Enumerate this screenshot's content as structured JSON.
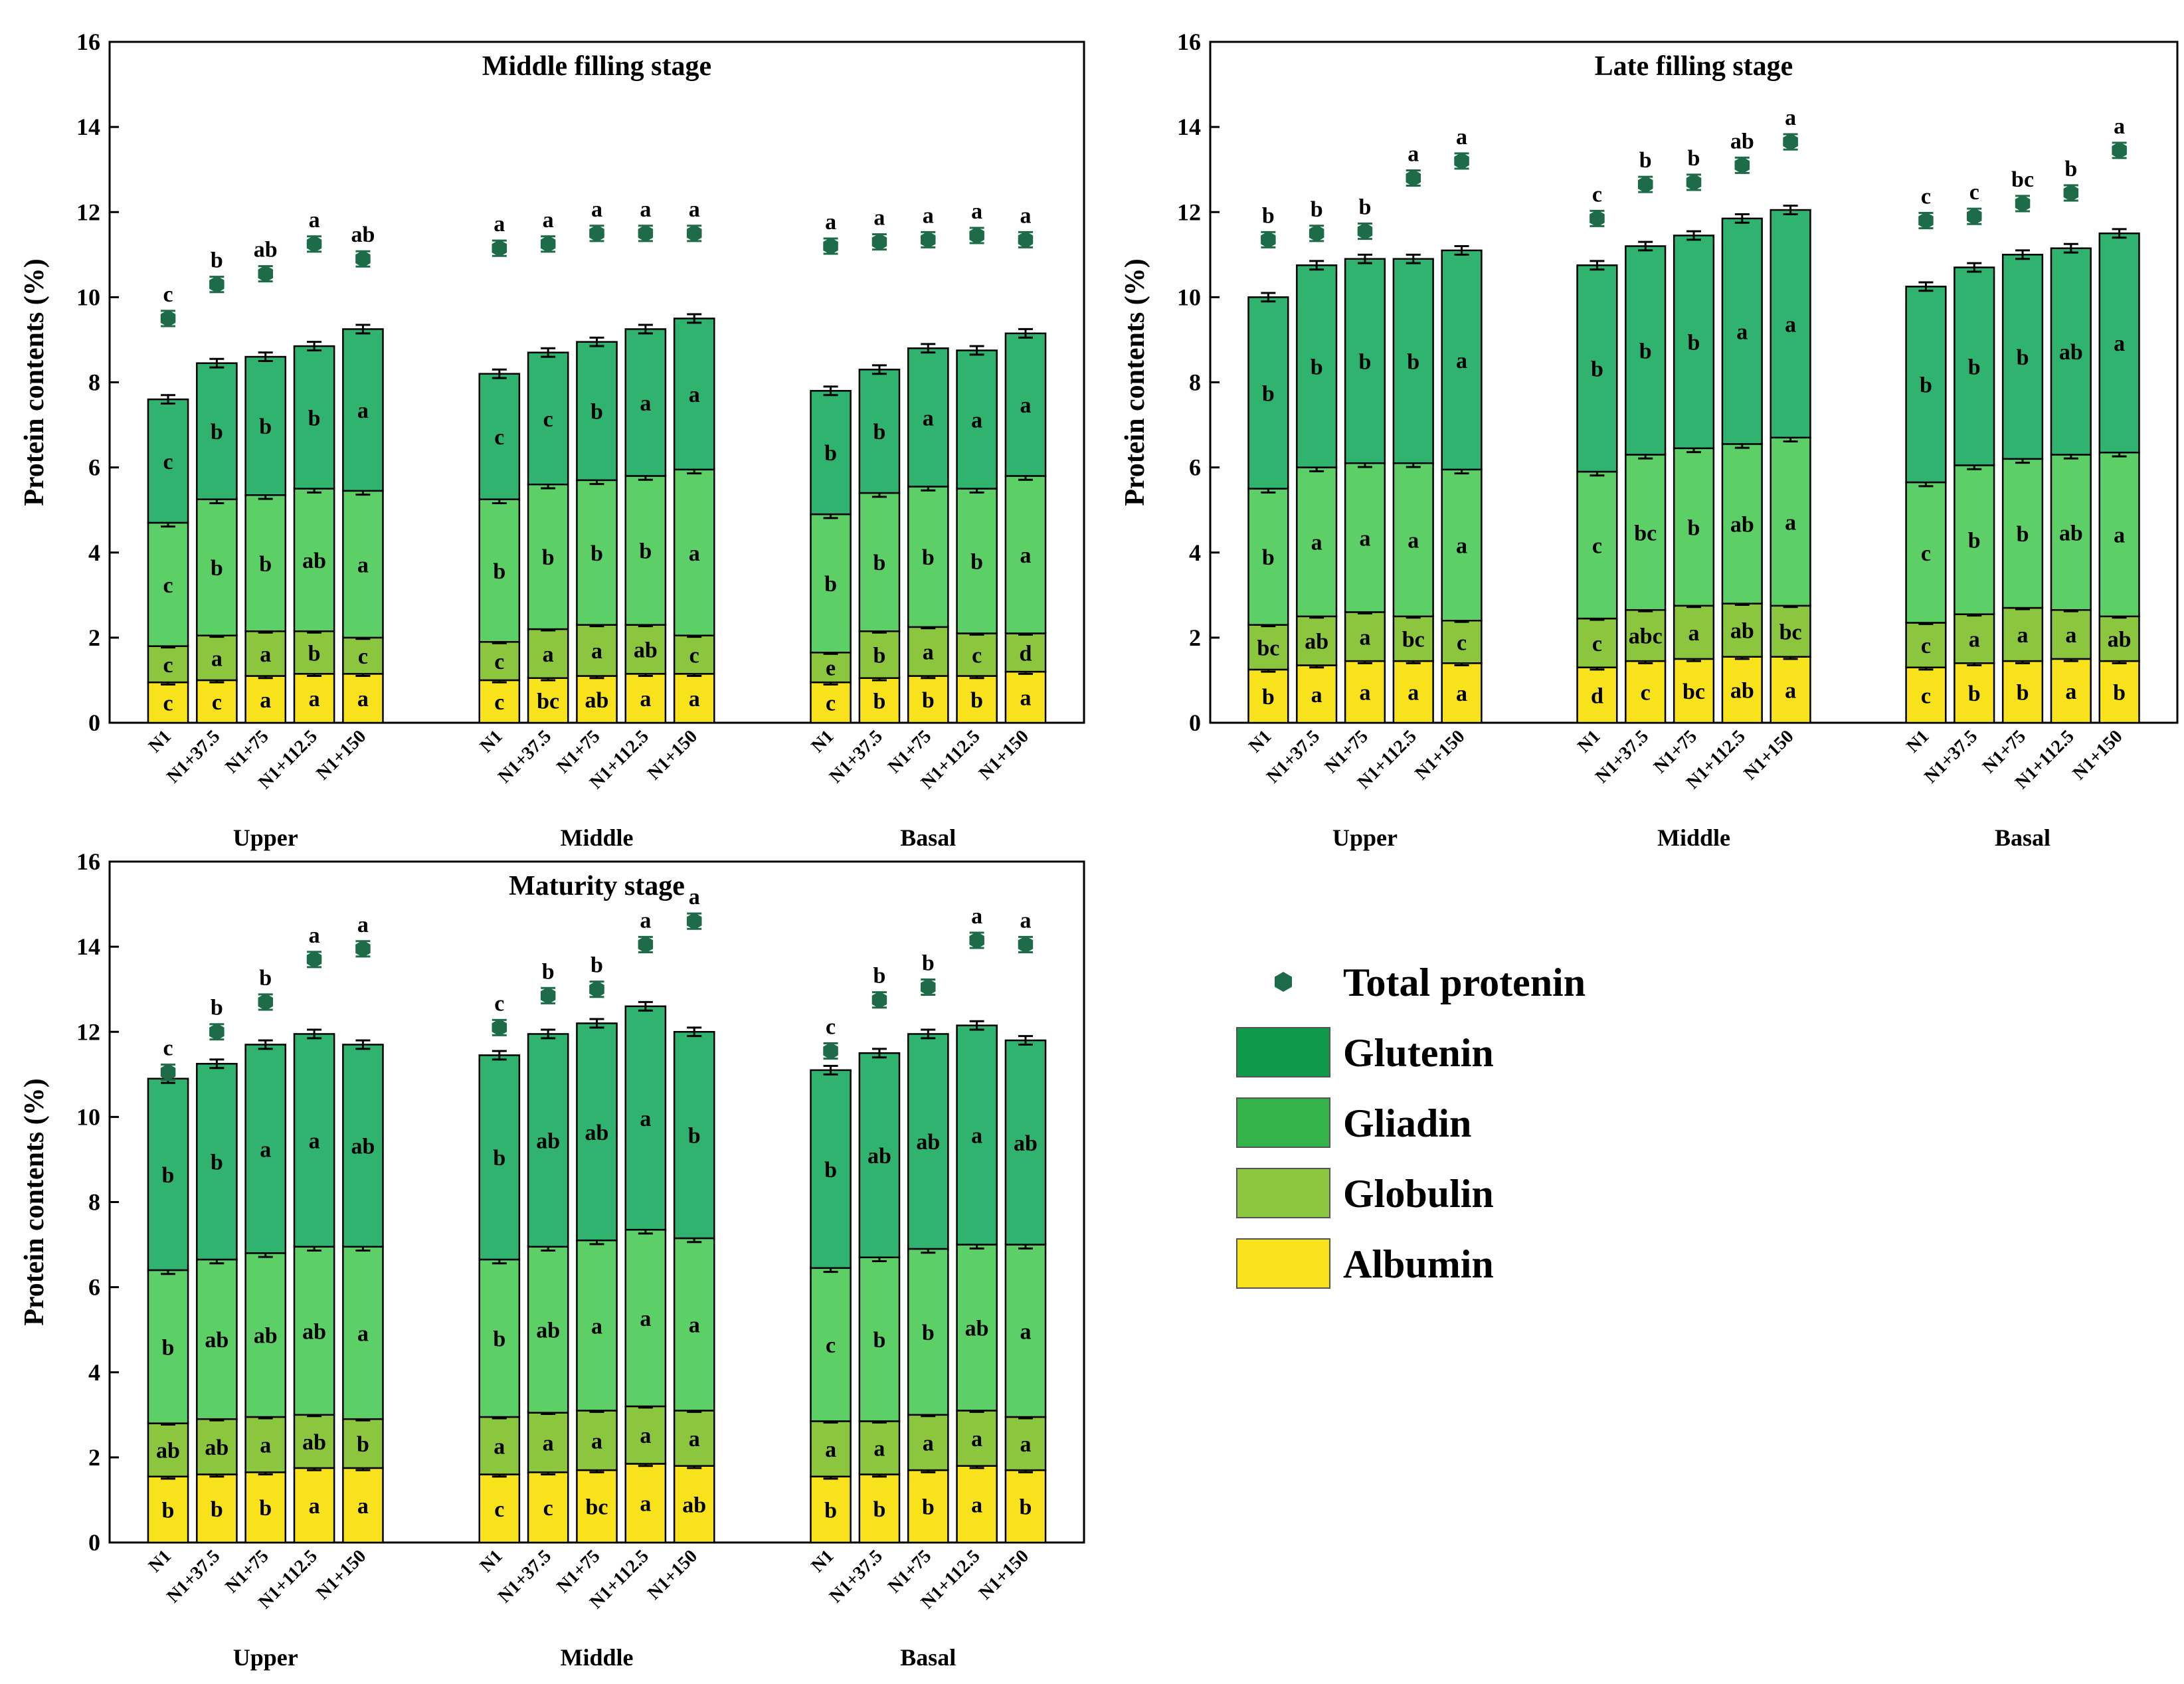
{
  "colors": {
    "albumin": "#f7e21c",
    "globulin": "#8cc63f",
    "gliadin": "#5ccf67",
    "glutenin": "#2fb36e",
    "total": "#1d6b48",
    "axis": "#000000"
  },
  "legend": {
    "items": [
      {
        "label": "Total protenin",
        "icon": "hexagon-marker-icon",
        "color": "#1d6b48"
      },
      {
        "label": "Glutenin",
        "icon": "swatch",
        "color": "#0e9a4a"
      },
      {
        "label": "Gliadin",
        "icon": "swatch",
        "color": "#34b34a"
      },
      {
        "label": "Globulin",
        "icon": "swatch",
        "color": "#8cc63f"
      },
      {
        "label": "Albumin",
        "icon": "swatch",
        "color": "#f7e21c"
      }
    ]
  },
  "chart_data": [
    {
      "type": "bar",
      "stacked": true,
      "title": "Middle filling stage",
      "ylabel": "Protein contents (%)",
      "ylim": [
        0,
        16
      ],
      "yticks": [
        "0",
        "2",
        "4",
        "6",
        "8",
        "10",
        "12",
        "14",
        "16"
      ],
      "categories": [
        "N1",
        "N1+37.5",
        "N1+75",
        "N1+112.5",
        "N1+150"
      ],
      "groups": [
        {
          "name": "Upper",
          "albumin": [
            0.95,
            1.0,
            1.1,
            1.15,
            1.15
          ],
          "albumin_sig": [
            "c",
            "c",
            "a",
            "a",
            "a"
          ],
          "globulin_top": [
            1.8,
            2.05,
            2.15,
            2.15,
            2.0
          ],
          "globulin_sig": [
            "c",
            "a",
            "a",
            "b",
            "c"
          ],
          "gliadin_top": [
            4.7,
            5.25,
            5.35,
            5.5,
            5.45
          ],
          "gliadin_sig": [
            "c",
            "b",
            "b",
            "ab",
            "a"
          ],
          "glutenin_top": [
            7.6,
            8.45,
            8.6,
            8.85,
            9.25
          ],
          "glutenin_sig": [
            "c",
            "b",
            "b",
            "b",
            "a"
          ],
          "total": [
            9.5,
            10.3,
            10.55,
            11.25,
            10.9
          ],
          "total_sig": [
            "c",
            "b",
            "ab",
            "a",
            "ab"
          ]
        },
        {
          "name": "Middle",
          "albumin": [
            1.0,
            1.05,
            1.1,
            1.15,
            1.15
          ],
          "albumin_sig": [
            "c",
            "bc",
            "ab",
            "a",
            "a"
          ],
          "globulin_top": [
            1.9,
            2.2,
            2.3,
            2.3,
            2.05
          ],
          "globulin_sig": [
            "c",
            "a",
            "a",
            "ab",
            "c"
          ],
          "gliadin_top": [
            5.25,
            5.6,
            5.7,
            5.8,
            5.95
          ],
          "gliadin_sig": [
            "b",
            "b",
            "b",
            "b",
            "a"
          ],
          "glutenin_top": [
            8.2,
            8.7,
            8.95,
            9.25,
            9.5
          ],
          "glutenin_sig": [
            "c",
            "c",
            "b",
            "a",
            "a"
          ],
          "total": [
            11.15,
            11.25,
            11.5,
            11.5,
            11.5
          ],
          "total_sig": [
            "a",
            "a",
            "a",
            "a",
            "a"
          ]
        },
        {
          "name": "Basal",
          "albumin": [
            0.95,
            1.05,
            1.1,
            1.1,
            1.2
          ],
          "albumin_sig": [
            "c",
            "b",
            "b",
            "b",
            "a"
          ],
          "globulin_top": [
            1.65,
            2.15,
            2.25,
            2.1,
            2.1
          ],
          "globulin_sig": [
            "e",
            "b",
            "a",
            "c",
            "d"
          ],
          "gliadin_top": [
            4.9,
            5.4,
            5.55,
            5.5,
            5.8
          ],
          "gliadin_sig": [
            "b",
            "b",
            "b",
            "b",
            "a"
          ],
          "glutenin_top": [
            7.8,
            8.3,
            8.8,
            8.75,
            9.15
          ],
          "glutenin_sig": [
            "b",
            "b",
            "a",
            "a",
            "a"
          ],
          "total": [
            11.2,
            11.3,
            11.35,
            11.45,
            11.35
          ],
          "total_sig": [
            "a",
            "a",
            "a",
            "a",
            "a"
          ]
        }
      ]
    },
    {
      "type": "bar",
      "stacked": true,
      "title": "Late filling stage",
      "ylabel": "Protein contents (%)",
      "ylim": [
        0,
        16
      ],
      "yticks": [
        "0",
        "2",
        "4",
        "6",
        "8",
        "10",
        "12",
        "14",
        "16"
      ],
      "categories": [
        "N1",
        "N1+37.5",
        "N1+75",
        "N1+112.5",
        "N1+150"
      ],
      "groups": [
        {
          "name": "Upper",
          "albumin": [
            1.25,
            1.35,
            1.45,
            1.45,
            1.4
          ],
          "albumin_sig": [
            "b",
            "a",
            "a",
            "a",
            "a"
          ],
          "globulin_top": [
            2.3,
            2.5,
            2.6,
            2.5,
            2.4
          ],
          "globulin_sig": [
            "bc",
            "ab",
            "a",
            "bc",
            "c"
          ],
          "gliadin_top": [
            5.5,
            6.0,
            6.1,
            6.1,
            5.95
          ],
          "gliadin_sig": [
            "b",
            "a",
            "a",
            "a",
            "a"
          ],
          "glutenin_top": [
            10.0,
            10.75,
            10.9,
            10.9,
            11.1
          ],
          "glutenin_sig": [
            "b",
            "b",
            "b",
            "b",
            "a"
          ],
          "total": [
            11.35,
            11.5,
            11.55,
            12.8,
            13.2
          ],
          "total_sig": [
            "b",
            "b",
            "b",
            "a",
            "a"
          ]
        },
        {
          "name": "Middle",
          "albumin": [
            1.3,
            1.45,
            1.5,
            1.55,
            1.55
          ],
          "albumin_sig": [
            "d",
            "c",
            "bc",
            "ab",
            "a"
          ],
          "globulin_top": [
            2.45,
            2.65,
            2.75,
            2.8,
            2.75
          ],
          "globulin_sig": [
            "c",
            "abc",
            "a",
            "ab",
            "bc"
          ],
          "gliadin_top": [
            5.9,
            6.3,
            6.45,
            6.55,
            6.7
          ],
          "gliadin_sig": [
            "c",
            "bc",
            "b",
            "ab",
            "a"
          ],
          "glutenin_top": [
            10.75,
            11.2,
            11.45,
            11.85,
            12.05
          ],
          "glutenin_sig": [
            "b",
            "b",
            "b",
            "a",
            "a"
          ],
          "total": [
            11.85,
            12.65,
            12.7,
            13.1,
            13.65
          ],
          "total_sig": [
            "c",
            "b",
            "b",
            "ab",
            "a"
          ]
        },
        {
          "name": "Basal",
          "albumin": [
            1.3,
            1.4,
            1.45,
            1.5,
            1.45
          ],
          "albumin_sig": [
            "c",
            "b",
            "b",
            "a",
            "b"
          ],
          "globulin_top": [
            2.35,
            2.55,
            2.7,
            2.65,
            2.5
          ],
          "globulin_sig": [
            "c",
            "a",
            "a",
            "a",
            "ab"
          ],
          "gliadin_top": [
            5.65,
            6.05,
            6.2,
            6.3,
            6.35
          ],
          "gliadin_sig": [
            "c",
            "b",
            "b",
            "ab",
            "a"
          ],
          "glutenin_top": [
            10.25,
            10.7,
            11.0,
            11.15,
            11.5
          ],
          "glutenin_sig": [
            "b",
            "b",
            "b",
            "ab",
            "a"
          ],
          "total": [
            11.8,
            11.9,
            12.2,
            12.45,
            13.45
          ],
          "total_sig": [
            "c",
            "c",
            "bc",
            "b",
            "a"
          ]
        }
      ]
    },
    {
      "type": "bar",
      "stacked": true,
      "title": "Maturity stage",
      "ylabel": "Protein contents (%)",
      "ylim": [
        0,
        16
      ],
      "yticks": [
        "0",
        "2",
        "4",
        "6",
        "8",
        "10",
        "12",
        "14",
        "16"
      ],
      "categories": [
        "N1",
        "N1+37.5",
        "N1+75",
        "N1+112.5",
        "N1+150"
      ],
      "groups": [
        {
          "name": "Upper",
          "albumin": [
            1.55,
            1.6,
            1.65,
            1.75,
            1.75
          ],
          "albumin_sig": [
            "b",
            "b",
            "b",
            "a",
            "a"
          ],
          "globulin_top": [
            2.8,
            2.9,
            2.95,
            3.0,
            2.9
          ],
          "globulin_sig": [
            "ab",
            "ab",
            "a",
            "ab",
            "b"
          ],
          "gliadin_top": [
            6.4,
            6.65,
            6.8,
            6.95,
            6.95
          ],
          "gliadin_sig": [
            "b",
            "ab",
            "ab",
            "ab",
            "a"
          ],
          "glutenin_top": [
            10.9,
            11.25,
            11.7,
            11.95,
            11.7
          ],
          "glutenin_sig": [
            "b",
            "b",
            "a",
            "a",
            "ab"
          ],
          "total": [
            11.05,
            12.0,
            12.7,
            13.7,
            13.95
          ],
          "total_sig": [
            "c",
            "b",
            "b",
            "a",
            "a"
          ]
        },
        {
          "name": "Middle",
          "albumin": [
            1.6,
            1.65,
            1.7,
            1.85,
            1.8
          ],
          "albumin_sig": [
            "c",
            "c",
            "bc",
            "a",
            "ab"
          ],
          "globulin_top": [
            2.95,
            3.05,
            3.1,
            3.2,
            3.1
          ],
          "globulin_sig": [
            "a",
            "a",
            "a",
            "a",
            "a"
          ],
          "gliadin_top": [
            6.65,
            6.95,
            7.1,
            7.35,
            7.15
          ],
          "gliadin_sig": [
            "b",
            "ab",
            "a",
            "a",
            "a"
          ],
          "glutenin_top": [
            11.45,
            11.95,
            12.2,
            12.6,
            12.0
          ],
          "glutenin_sig": [
            "b",
            "ab",
            "ab",
            "a",
            "b"
          ],
          "total": [
            12.1,
            12.85,
            13.0,
            14.05,
            14.6
          ],
          "total_sig": [
            "c",
            "b",
            "b",
            "a",
            "a"
          ]
        },
        {
          "name": "Basal",
          "albumin": [
            1.55,
            1.6,
            1.7,
            1.8,
            1.7
          ],
          "albumin_sig": [
            "b",
            "b",
            "b",
            "a",
            "b"
          ],
          "globulin_top": [
            2.85,
            2.85,
            3.0,
            3.1,
            2.95
          ],
          "globulin_sig": [
            "a",
            "a",
            "a",
            "a",
            "a"
          ],
          "gliadin_top": [
            6.45,
            6.7,
            6.9,
            7.0,
            7.0
          ],
          "gliadin_sig": [
            "c",
            "b",
            "b",
            "ab",
            "a"
          ],
          "glutenin_top": [
            11.1,
            11.5,
            11.95,
            12.15,
            11.8
          ],
          "glutenin_sig": [
            "b",
            "ab",
            "ab",
            "a",
            "ab"
          ],
          "total": [
            11.55,
            12.75,
            13.05,
            14.15,
            14.05
          ],
          "total_sig": [
            "c",
            "b",
            "b",
            "a",
            "a"
          ]
        }
      ]
    }
  ]
}
